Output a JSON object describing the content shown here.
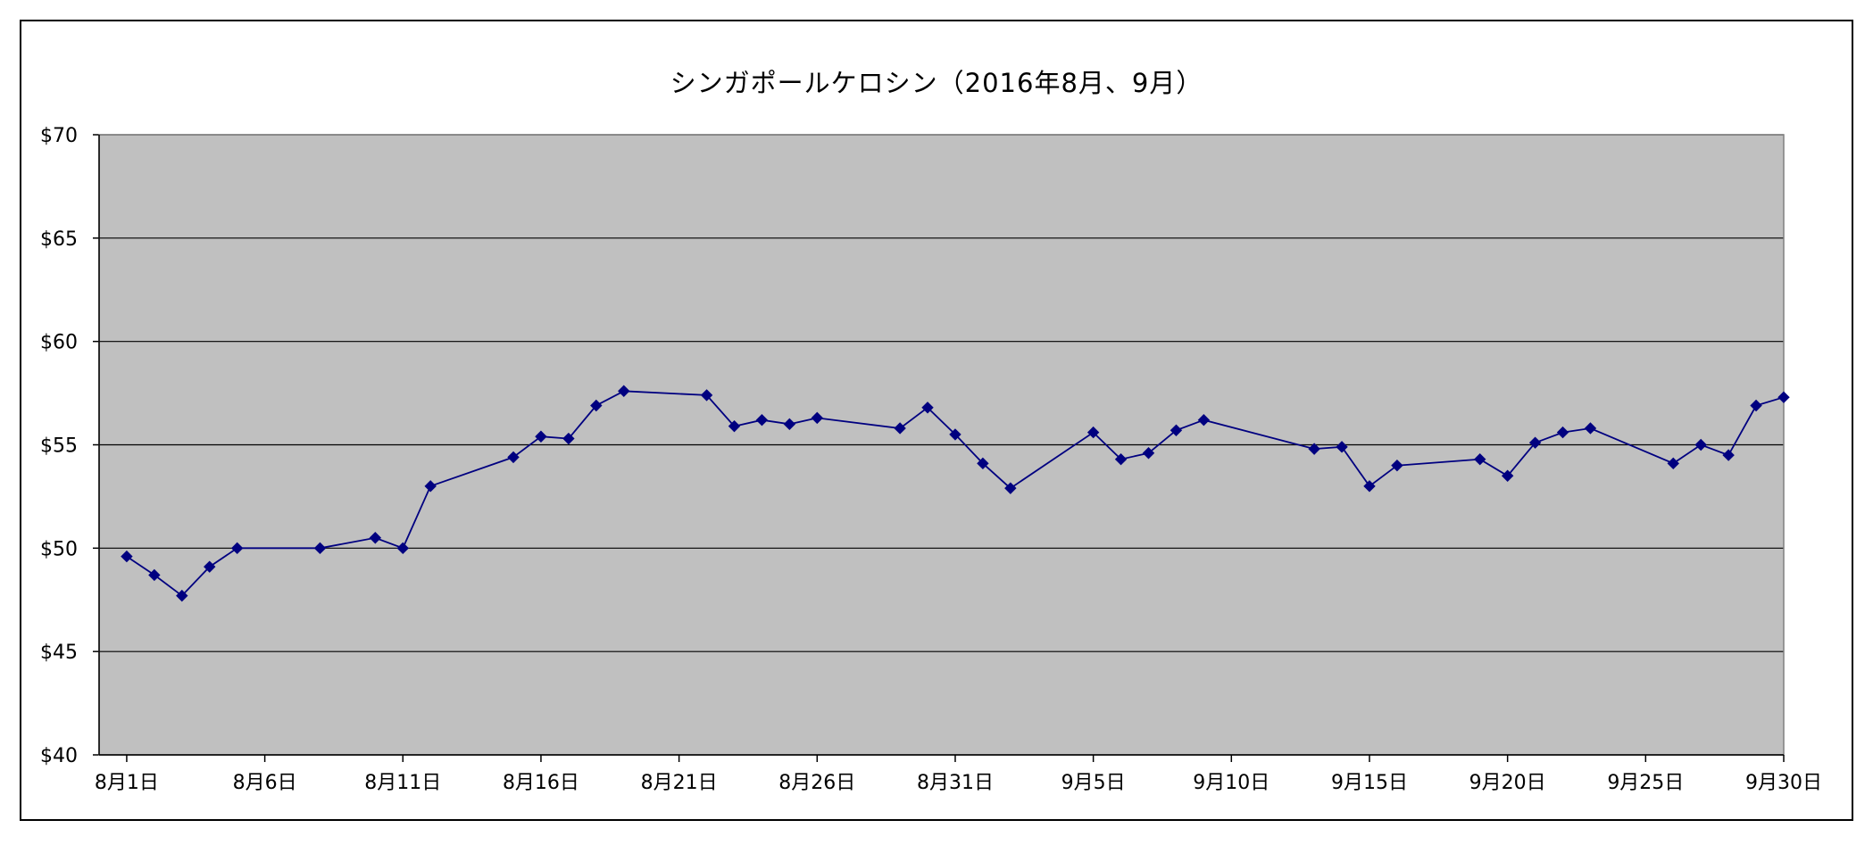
{
  "chart_data": {
    "type": "line",
    "title": "シンガポールケロシン（2016年8月、9月）",
    "xlabel": "",
    "ylabel": "",
    "ylim": [
      40,
      70
    ],
    "y_ticks": [
      40,
      45,
      50,
      55,
      60,
      65,
      70
    ],
    "y_tick_labels": [
      "$40",
      "$45",
      "$50",
      "$55",
      "$60",
      "$65",
      "$70"
    ],
    "x_range": [
      "2016-07-31",
      "2016-09-30"
    ],
    "x_ticks": [
      "2016-08-01",
      "2016-08-06",
      "2016-08-11",
      "2016-08-16",
      "2016-08-21",
      "2016-08-26",
      "2016-08-31",
      "2016-09-05",
      "2016-09-10",
      "2016-09-15",
      "2016-09-20",
      "2016-09-25",
      "2016-09-30"
    ],
    "x_tick_labels": [
      "8月1日",
      "8月6日",
      "8月11日",
      "8月16日",
      "8月21日",
      "8月26日",
      "8月31日",
      "9月5日",
      "9月10日",
      "9月15日",
      "9月20日",
      "9月25日",
      "9月30日"
    ],
    "grid": true,
    "legend": "none",
    "colors": {
      "line": "#000080",
      "plot_background": "#c0c0c0",
      "grid": "#000000"
    },
    "x": [
      "2016-08-01",
      "2016-08-02",
      "2016-08-03",
      "2016-08-04",
      "2016-08-05",
      "2016-08-08",
      "2016-08-10",
      "2016-08-11",
      "2016-08-12",
      "2016-08-15",
      "2016-08-16",
      "2016-08-17",
      "2016-08-18",
      "2016-08-19",
      "2016-08-22",
      "2016-08-23",
      "2016-08-24",
      "2016-08-25",
      "2016-08-26",
      "2016-08-29",
      "2016-08-30",
      "2016-08-31",
      "2016-09-01",
      "2016-09-02",
      "2016-09-05",
      "2016-09-06",
      "2016-09-07",
      "2016-09-08",
      "2016-09-09",
      "2016-09-13",
      "2016-09-14",
      "2016-09-15",
      "2016-09-16",
      "2016-09-19",
      "2016-09-20",
      "2016-09-21",
      "2016-09-22",
      "2016-09-23",
      "2016-09-26",
      "2016-09-27",
      "2016-09-28",
      "2016-09-29",
      "2016-09-30"
    ],
    "series": [
      {
        "values": [
          49.6,
          48.7,
          47.7,
          49.1,
          50.0,
          50.0,
          50.5,
          50.0,
          53.0,
          54.4,
          55.4,
          55.3,
          56.9,
          57.6,
          57.4,
          55.9,
          56.2,
          56.0,
          56.3,
          55.8,
          56.8,
          55.5,
          54.1,
          52.9,
          55.6,
          54.3,
          54.6,
          55.7,
          56.2,
          54.8,
          54.9,
          53.0,
          54.0,
          54.3,
          53.5,
          55.1,
          55.6,
          55.8,
          54.1,
          55.0,
          54.5,
          56.9,
          57.3
        ]
      }
    ]
  }
}
